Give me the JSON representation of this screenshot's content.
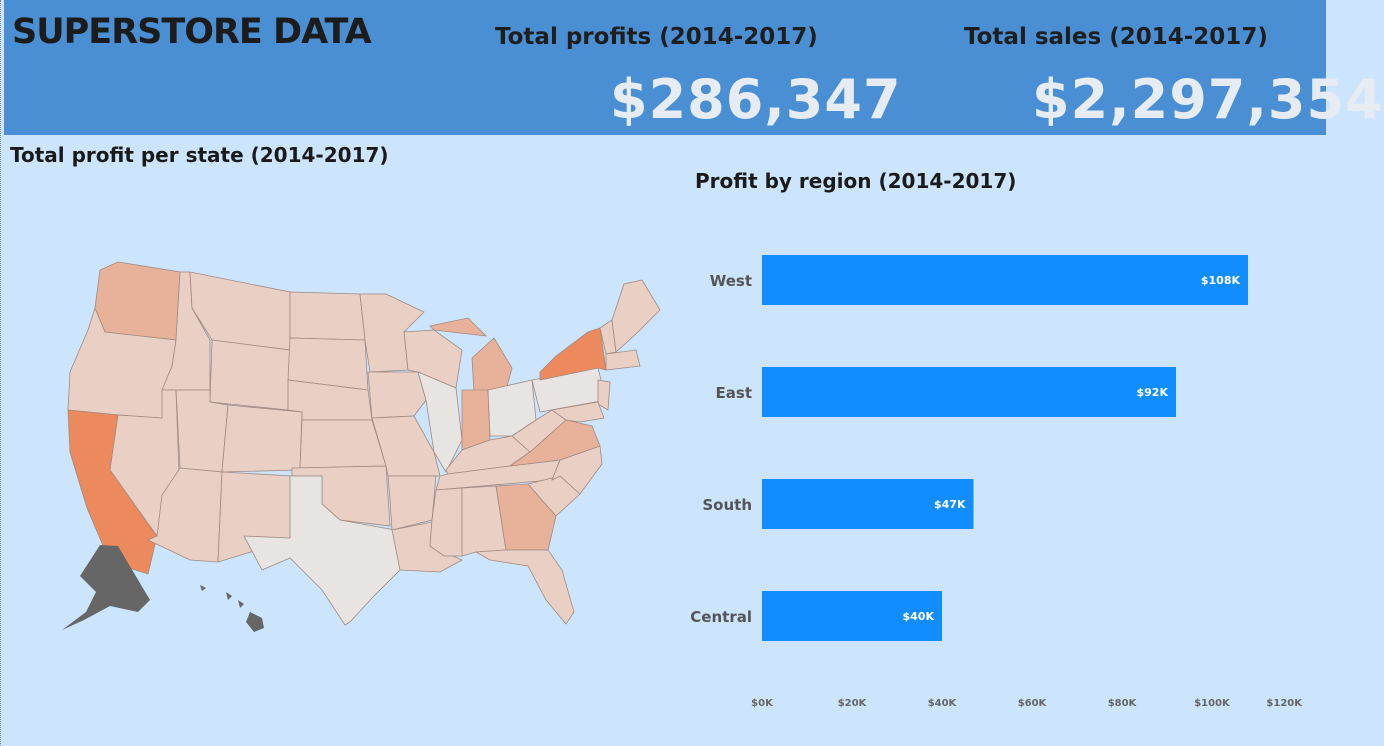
{
  "header": {
    "title": "SUPERSTORE DATA",
    "kpis": [
      {
        "label": "Total profits (2014-2017)",
        "value": "$286,347"
      },
      {
        "label": "Total sales (2014-2017)",
        "value": "$2,297,354"
      }
    ]
  },
  "map": {
    "title": "Total profit per state (2014-2017)",
    "colors": {
      "high": "#ec8a5e",
      "mid": "#e8b29a",
      "low": "#e9cfc4",
      "none": "#e8e4e2",
      "missing": "#666666",
      "border": "#a08a82"
    }
  },
  "bar_chart": {
    "title": "Profit by region (2014-2017)"
  },
  "chart_data": {
    "type": "bar",
    "orientation": "horizontal",
    "title": "Profit by region (2014-2017)",
    "categories": [
      "West",
      "East",
      "South",
      "Central"
    ],
    "values": [
      108000,
      92000,
      47000,
      40000
    ],
    "data_labels": [
      "$108K",
      "$92K",
      "$47K",
      "$40K"
    ],
    "xlim": [
      0,
      120000
    ],
    "x_ticks": [
      "$0K",
      "$20K",
      "$40K",
      "$60K",
      "$80K",
      "$100K",
      "$120K"
    ],
    "bar_color": "#118dff",
    "grid": false
  }
}
